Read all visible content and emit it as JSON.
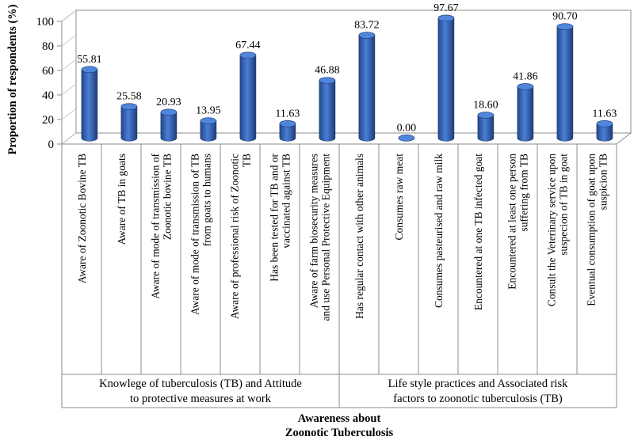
{
  "chart_data": {
    "type": "bar",
    "title": "",
    "ylabel": "Proportion of respondents (%)",
    "xlabel_lines": [
      "Awareness about",
      "Zoonotic Tuberculosis"
    ],
    "ylim": [
      0,
      100
    ],
    "yticks": [
      0,
      20,
      40,
      60,
      80,
      100
    ],
    "grid": false,
    "legend": "none",
    "bar_color": "#3a6bbf",
    "categories": [
      [
        "Aware of Zoonotic Bovine TB"
      ],
      [
        "Aware of TB in goats"
      ],
      [
        "Aware of mode of transmission of",
        "Zoonotic bovine TB"
      ],
      [
        "Aware of mode of transmission of TB",
        "from goats to humans"
      ],
      [
        "Aware of professional risk of Zoonotic",
        "TB"
      ],
      [
        "Has been tested for TB and or",
        "vaccinated against TB"
      ],
      [
        "Aware of farm biosecurity measures",
        "and use Personal Protective Equipment"
      ],
      [
        "Has regular contact with other animals"
      ],
      [
        "Consumes raw meat"
      ],
      [
        "Consumes pasteurised and raw milk"
      ],
      [
        "Encountered at one TB infected goat"
      ],
      [
        "Encountered at least one person",
        "suffering from TB"
      ],
      [
        "Consult the Veterinary service upon",
        "suspecion of TB in goat"
      ],
      [
        "Eventual consumption of goat upon",
        "suspicion TB"
      ]
    ],
    "values": [
      55.81,
      25.58,
      20.93,
      13.95,
      67.44,
      11.63,
      46.88,
      83.72,
      0.0,
      97.67,
      18.6,
      41.86,
      90.7,
      11.63
    ],
    "value_labels": [
      "55.81",
      "25.58",
      "20.93",
      "13.95",
      "67.44",
      "11.63",
      "46.88",
      "83.72",
      "0.00",
      "97.67",
      "18.60",
      "41.86",
      "90.70",
      "11.63"
    ],
    "groups": [
      {
        "lines": [
          "Knowlege of tuberculosis (TB) and Attitude",
          "to protective measures at work"
        ],
        "count": 7
      },
      {
        "lines": [
          "Life style practices and Associated risk",
          "factors to zoonotic tuberculosis (TB)"
        ],
        "count": 7
      }
    ]
  }
}
